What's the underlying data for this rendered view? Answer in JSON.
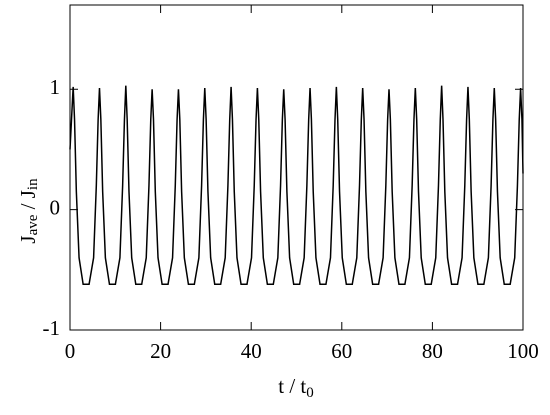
{
  "chart_data": {
    "type": "line",
    "xlabel": [
      "t / t",
      "0"
    ],
    "ylabel": [
      "J",
      "ave",
      " / J",
      "in"
    ],
    "xlim": [
      0,
      100
    ],
    "xticks": [
      0,
      20,
      40,
      60,
      80,
      100
    ],
    "ylim": [
      -1,
      1.7
    ],
    "yticks": [
      -1,
      0,
      1
    ],
    "color": "#000000",
    "x": [
      0,
      0.4,
      0.7,
      1.0,
      1.4,
      2.0,
      2.9,
      4.21,
      5.21,
      5.81,
      6.21,
      6.51,
      6.81,
      7.21,
      7.81,
      8.71,
      10.02,
      11.02,
      11.62,
      12.02,
      12.32,
      12.62,
      13.02,
      13.62,
      14.52,
      15.83,
      16.83,
      17.43,
      17.83,
      18.13,
      18.43,
      18.83,
      19.43,
      20.33,
      21.64,
      22.64,
      23.24,
      23.64,
      23.94,
      24.24,
      24.64,
      25.24,
      26.14,
      27.45,
      28.45,
      29.05,
      29.45,
      29.75,
      30.05,
      30.45,
      31.05,
      31.95,
      33.26,
      34.26,
      34.86,
      35.26,
      35.56,
      35.86,
      36.26,
      36.86,
      37.76,
      39.07,
      40.07,
      40.67,
      41.07,
      41.37,
      41.67,
      42.07,
      42.67,
      43.57,
      44.88,
      45.88,
      46.48,
      46.88,
      47.18,
      47.48,
      47.88,
      48.48,
      49.38,
      50.69,
      51.69,
      52.29,
      52.69,
      52.99,
      53.29,
      53.69,
      54.29,
      55.19,
      56.5,
      57.5,
      58.1,
      58.5,
      58.8,
      59.1,
      59.5,
      60.1,
      61.0,
      62.31,
      63.31,
      63.91,
      64.31,
      64.61,
      64.91,
      65.31,
      65.91,
      66.81,
      68.12,
      69.12,
      69.72,
      70.12,
      70.42,
      70.72,
      71.12,
      71.72,
      72.62,
      73.93,
      74.93,
      75.53,
      75.93,
      76.23,
      76.53,
      76.93,
      77.53,
      78.43,
      79.74,
      80.74,
      81.34,
      81.74,
      82.04,
      82.34,
      82.74,
      83.34,
      84.24,
      85.55,
      86.55,
      87.15,
      87.55,
      87.85,
      88.15,
      88.55,
      89.15,
      90.05,
      91.36,
      92.36,
      92.96,
      93.36,
      93.66,
      93.96,
      94.36,
      94.96,
      95.86,
      97.17,
      98.17,
      98.77,
      99.17,
      99.47,
      99.77,
      100
    ],
    "values": [
      0.5,
      0.8,
      1.02,
      0.75,
      0.15,
      -0.4,
      -0.62,
      -0.62,
      -0.4,
      0.2,
      0.75,
      1.01,
      0.75,
      0.15,
      -0.4,
      -0.62,
      -0.62,
      -0.4,
      0.2,
      0.75,
      1.03,
      0.75,
      0.15,
      -0.4,
      -0.62,
      -0.62,
      -0.4,
      0.2,
      0.75,
      1.0,
      0.75,
      0.15,
      -0.4,
      -0.62,
      -0.62,
      -0.4,
      0.2,
      0.75,
      1.0,
      0.75,
      0.15,
      -0.4,
      -0.62,
      -0.62,
      -0.4,
      0.2,
      0.75,
      1.01,
      0.75,
      0.15,
      -0.4,
      -0.62,
      -0.62,
      -0.4,
      0.2,
      0.75,
      1.02,
      0.75,
      0.15,
      -0.4,
      -0.62,
      -0.62,
      -0.4,
      0.2,
      0.75,
      1.01,
      0.75,
      0.15,
      -0.4,
      -0.62,
      -0.62,
      -0.4,
      0.2,
      0.75,
      1.0,
      0.75,
      0.15,
      -0.4,
      -0.62,
      -0.62,
      -0.4,
      0.2,
      0.75,
      1.01,
      0.75,
      0.15,
      -0.4,
      -0.62,
      -0.62,
      -0.4,
      0.2,
      0.75,
      1.02,
      0.75,
      0.15,
      -0.4,
      -0.62,
      -0.62,
      -0.4,
      0.2,
      0.75,
      1.01,
      0.75,
      0.15,
      -0.4,
      -0.62,
      -0.62,
      -0.4,
      0.2,
      0.75,
      1.0,
      0.75,
      0.15,
      -0.4,
      -0.62,
      -0.62,
      -0.4,
      0.2,
      0.75,
      1.01,
      0.75,
      0.15,
      -0.4,
      -0.62,
      -0.62,
      -0.4,
      0.2,
      0.75,
      1.03,
      0.75,
      0.15,
      -0.4,
      -0.62,
      -0.62,
      -0.4,
      0.2,
      0.75,
      1.02,
      0.75,
      0.15,
      -0.4,
      -0.62,
      -0.62,
      -0.4,
      0.2,
      0.75,
      1.01,
      0.75,
      0.15,
      -0.4,
      -0.62,
      -0.62,
      -0.4,
      0.2,
      0.75,
      1.01,
      0.75,
      0.3
    ]
  }
}
